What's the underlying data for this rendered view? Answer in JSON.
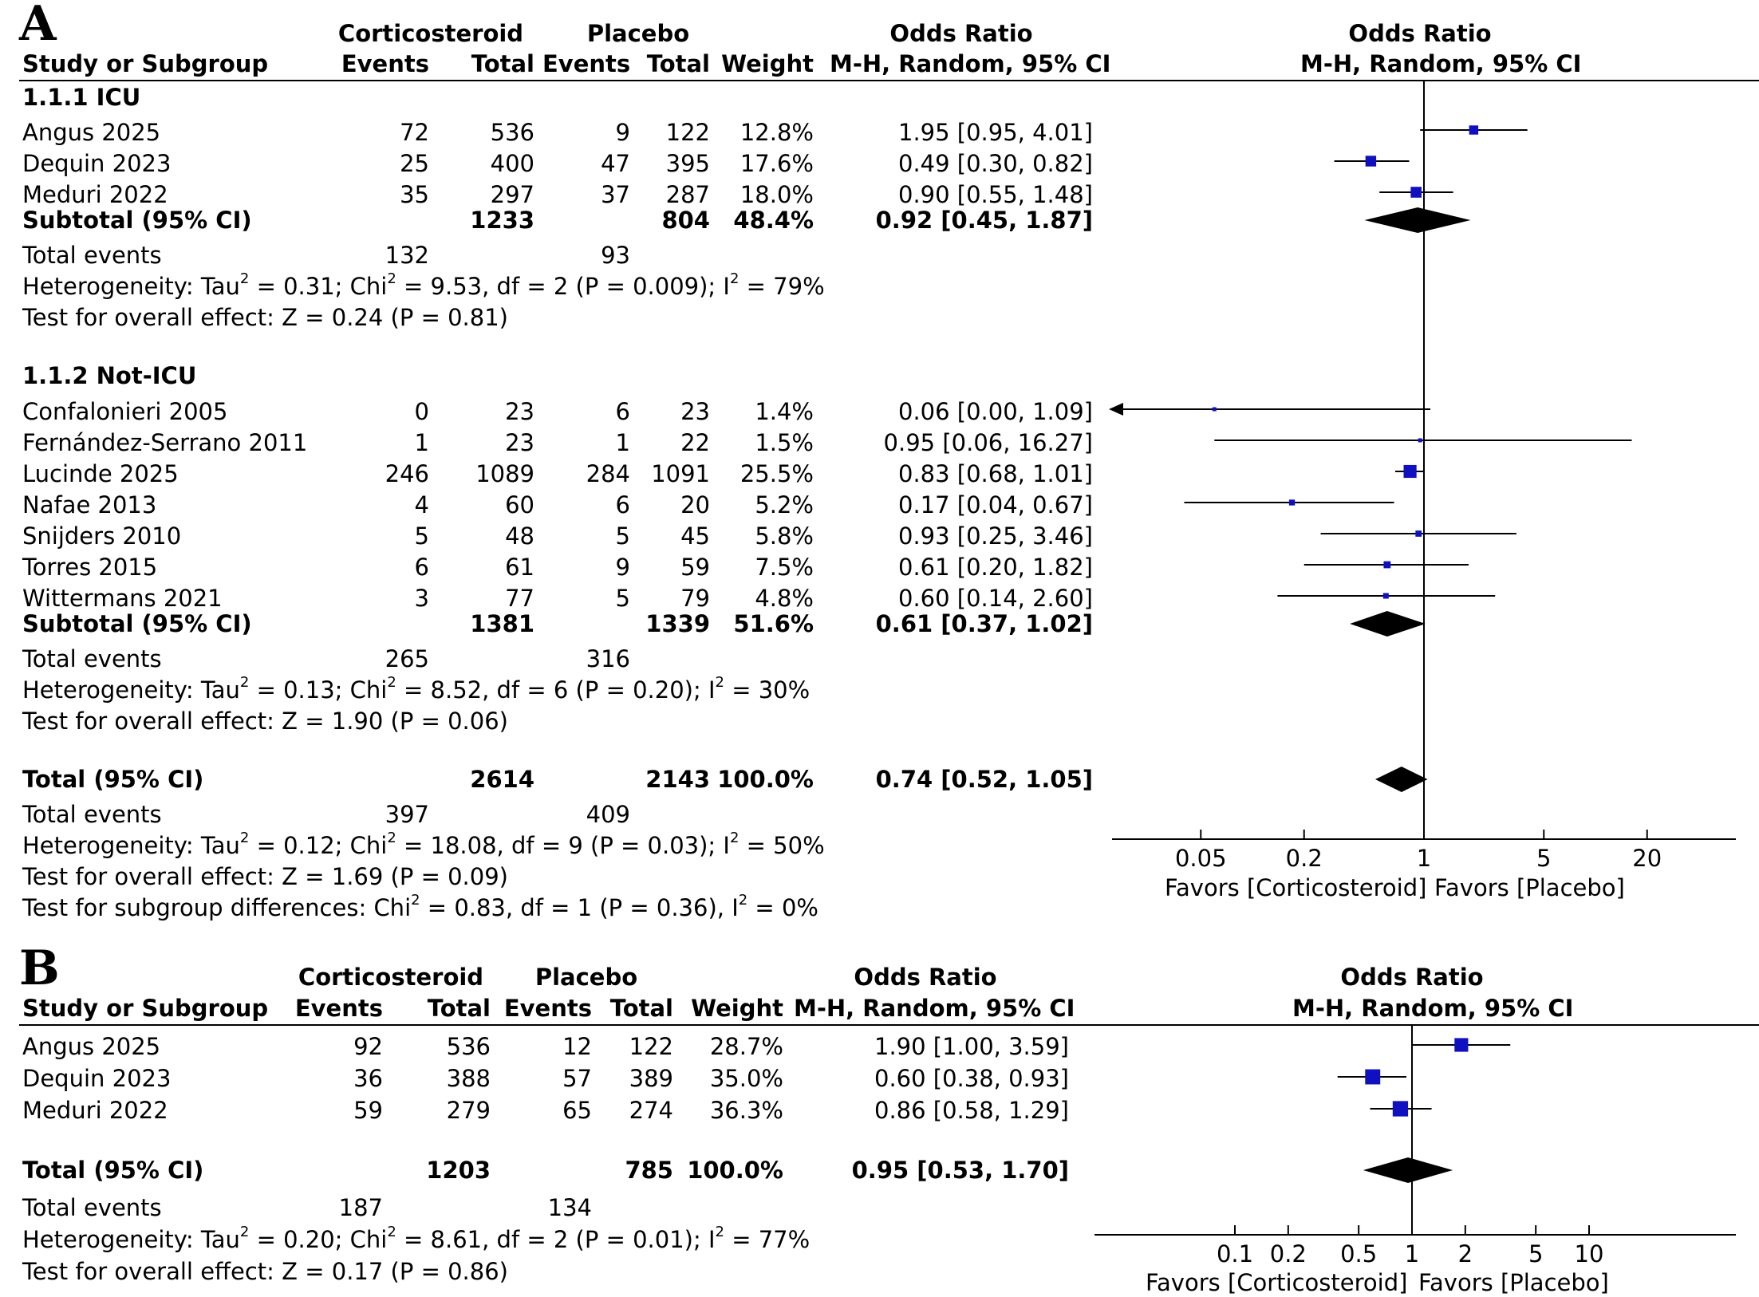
{
  "chart_data": [
    {
      "type": "forest",
      "panel": "A",
      "column_headers": {
        "study": "Study or Subgroup",
        "group1": "Corticosteroid",
        "group2": "Placebo",
        "events": "Events",
        "total": "Total",
        "weight": "Weight",
        "or_title": "Odds Ratio",
        "or_method": "M-H, Random, 95% CI",
        "plot_title": "Odds Ratio",
        "plot_method": "M-H, Random, 95% CI"
      },
      "subgroups": [
        {
          "label": "1.1.1 ICU",
          "studies": [
            {
              "name": "Angus 2025",
              "e1": "72",
              "n1": "536",
              "e2": "9",
              "n2": "122",
              "weight": "12.8%",
              "ci_text": "1.95 [0.95, 4.01]",
              "or": 1.95,
              "lo": 0.95,
              "hi": 4.01
            },
            {
              "name": "Dequin 2023",
              "e1": "25",
              "n1": "400",
              "e2": "47",
              "n2": "395",
              "weight": "17.6%",
              "ci_text": "0.49 [0.30, 0.82]",
              "or": 0.49,
              "lo": 0.3,
              "hi": 0.82
            },
            {
              "name": "Meduri 2022",
              "e1": "35",
              "n1": "297",
              "e2": "37",
              "n2": "287",
              "weight": "18.0%",
              "ci_text": "0.90 [0.55, 1.48]",
              "or": 0.9,
              "lo": 0.55,
              "hi": 1.48
            }
          ],
          "subtotal": {
            "label": "Subtotal (95% CI)",
            "n1": "1233",
            "n2": "804",
            "weight": "48.4%",
            "ci_text": "0.92 [0.45, 1.87]",
            "or": 0.92,
            "lo": 0.45,
            "hi": 1.87
          },
          "total_events": {
            "label": "Total events",
            "e1": "132",
            "e2": "93"
          },
          "heterogeneity": {
            "prefix": "Heterogeneity: Tau",
            "mid": " = 0.31; Chi",
            "end": " = 9.53, df = 2 (P = 0.009); I",
            "tail": " = 79%"
          },
          "overall": "Test for overall effect: Z = 0.24 (P = 0.81)"
        },
        {
          "label": "1.1.2 Not-ICU",
          "studies": [
            {
              "name": "Confalonieri 2005",
              "e1": "0",
              "n1": "23",
              "e2": "6",
              "n2": "23",
              "weight": "1.4%",
              "ci_text": "0.06 [0.00, 1.09]",
              "or": 0.06,
              "lo": 0.0,
              "hi": 1.09
            },
            {
              "name": "Fernández-Serrano 2011",
              "e1": "1",
              "n1": "23",
              "e2": "1",
              "n2": "22",
              "weight": "1.5%",
              "ci_text": "0.95 [0.06, 16.27]",
              "or": 0.95,
              "lo": 0.06,
              "hi": 16.27
            },
            {
              "name": "Lucinde 2025",
              "e1": "246",
              "n1": "1089",
              "e2": "284",
              "n2": "1091",
              "weight": "25.5%",
              "ci_text": "0.83 [0.68, 1.01]",
              "or": 0.83,
              "lo": 0.68,
              "hi": 1.01
            },
            {
              "name": "Nafae 2013",
              "e1": "4",
              "n1": "60",
              "e2": "6",
              "n2": "20",
              "weight": "5.2%",
              "ci_text": "0.17 [0.04, 0.67]",
              "or": 0.17,
              "lo": 0.04,
              "hi": 0.67
            },
            {
              "name": "Snijders 2010",
              "e1": "5",
              "n1": "48",
              "e2": "5",
              "n2": "45",
              "weight": "5.8%",
              "ci_text": "0.93 [0.25, 3.46]",
              "or": 0.93,
              "lo": 0.25,
              "hi": 3.46
            },
            {
              "name": "Torres 2015",
              "e1": "6",
              "n1": "61",
              "e2": "9",
              "n2": "59",
              "weight": "7.5%",
              "ci_text": "0.61 [0.20, 1.82]",
              "or": 0.61,
              "lo": 0.2,
              "hi": 1.82
            },
            {
              "name": "Wittermans 2021",
              "e1": "3",
              "n1": "77",
              "e2": "5",
              "n2": "79",
              "weight": "4.8%",
              "ci_text": "0.60 [0.14, 2.60]",
              "or": 0.6,
              "lo": 0.14,
              "hi": 2.6
            }
          ],
          "subtotal": {
            "label": "Subtotal (95% CI)",
            "n1": "1381",
            "n2": "1339",
            "weight": "51.6%",
            "ci_text": "0.61 [0.37, 1.02]",
            "or": 0.61,
            "lo": 0.37,
            "hi": 1.02
          },
          "total_events": {
            "label": "Total events",
            "e1": "265",
            "e2": "316"
          },
          "heterogeneity": {
            "prefix": "Heterogeneity: Tau",
            "mid": " = 0.13; Chi",
            "end": " = 8.52, df = 6 (P = 0.20); I",
            "tail": " = 30%"
          },
          "overall": "Test for overall effect: Z = 1.90 (P = 0.06)"
        }
      ],
      "total": {
        "label": "Total (95% CI)",
        "n1": "2614",
        "n2": "2143",
        "weight": "100.0%",
        "ci_text": "0.74 [0.52, 1.05]",
        "or": 0.74,
        "lo": 0.52,
        "hi": 1.05
      },
      "total_events": {
        "label": "Total events",
        "e1": "397",
        "e2": "409"
      },
      "heterogeneity": {
        "prefix": "Heterogeneity: Tau",
        "mid": " = 0.12; Chi",
        "end": " = 18.08, df = 9 (P = 0.03); I",
        "tail": " = 50%"
      },
      "overall": "Test for overall effect: Z = 1.69 (P = 0.09)",
      "subgroup_diff": {
        "prefix": "Test for subgroup differences: Chi",
        "mid": " = 0.83, df = 1 (P = 0.36), I",
        "tail": " = 0%"
      },
      "axis": {
        "scale": "log",
        "ticks": [
          0.05,
          0.2,
          1,
          5,
          20
        ],
        "tick_labels": [
          "0.05",
          "0.2",
          "1",
          "5",
          "20"
        ],
        "range": [
          0.05,
          20
        ]
      },
      "favors_left": "Favors [Corticosteroid]",
      "favors_right": "Favors [Placebo]"
    },
    {
      "type": "forest",
      "panel": "B",
      "column_headers": {
        "study": "Study or Subgroup",
        "group1": "Corticosteroid",
        "group2": "Placebo",
        "events": "Events",
        "total": "Total",
        "weight": "Weight",
        "or_title": "Odds Ratio",
        "or_method": "M-H, Random, 95% CI",
        "plot_title": "Odds Ratio",
        "plot_method": "M-H, Random, 95% CI"
      },
      "studies": [
        {
          "name": "Angus 2025",
          "e1": "92",
          "n1": "536",
          "e2": "12",
          "n2": "122",
          "weight": "28.7%",
          "ci_text": "1.90 [1.00, 3.59]",
          "or": 1.9,
          "lo": 1.0,
          "hi": 3.59
        },
        {
          "name": "Dequin 2023",
          "e1": "36",
          "n1": "388",
          "e2": "57",
          "n2": "389",
          "weight": "35.0%",
          "ci_text": "0.60 [0.38, 0.93]",
          "or": 0.6,
          "lo": 0.38,
          "hi": 0.93
        },
        {
          "name": "Meduri 2022",
          "e1": "59",
          "n1": "279",
          "e2": "65",
          "n2": "274",
          "weight": "36.3%",
          "ci_text": "0.86 [0.58, 1.29]",
          "or": 0.86,
          "lo": 0.58,
          "hi": 1.29
        }
      ],
      "total": {
        "label": "Total (95% CI)",
        "n1": "1203",
        "n2": "785",
        "weight": "100.0%",
        "ci_text": "0.95 [0.53, 1.70]",
        "or": 0.95,
        "lo": 0.53,
        "hi": 1.7
      },
      "total_events": {
        "label": "Total events",
        "e1": "187",
        "e2": "134"
      },
      "heterogeneity": {
        "prefix": "Heterogeneity: Tau",
        "mid": " = 0.20; Chi",
        "end": " = 8.61, df = 2 (P = 0.01); I",
        "tail": " = 77%"
      },
      "overall": "Test for overall effect: Z = 0.17 (P = 0.86)",
      "axis": {
        "scale": "log",
        "ticks": [
          0.1,
          0.2,
          0.5,
          1,
          2,
          5,
          10
        ],
        "tick_labels": [
          "0.1",
          "0.2",
          "0.5",
          "1",
          "2",
          "5",
          "10"
        ],
        "range": [
          0.1,
          10
        ]
      },
      "favors_left": "Favors [Corticosteroid]",
      "favors_right": "Favors [Placebo]"
    }
  ],
  "panels": {
    "a_letter": "A",
    "b_letter": "B"
  },
  "sup2": "2",
  "colors": {
    "marker": "#1010c0",
    "diamond": "#000000",
    "line": "#000000"
  }
}
